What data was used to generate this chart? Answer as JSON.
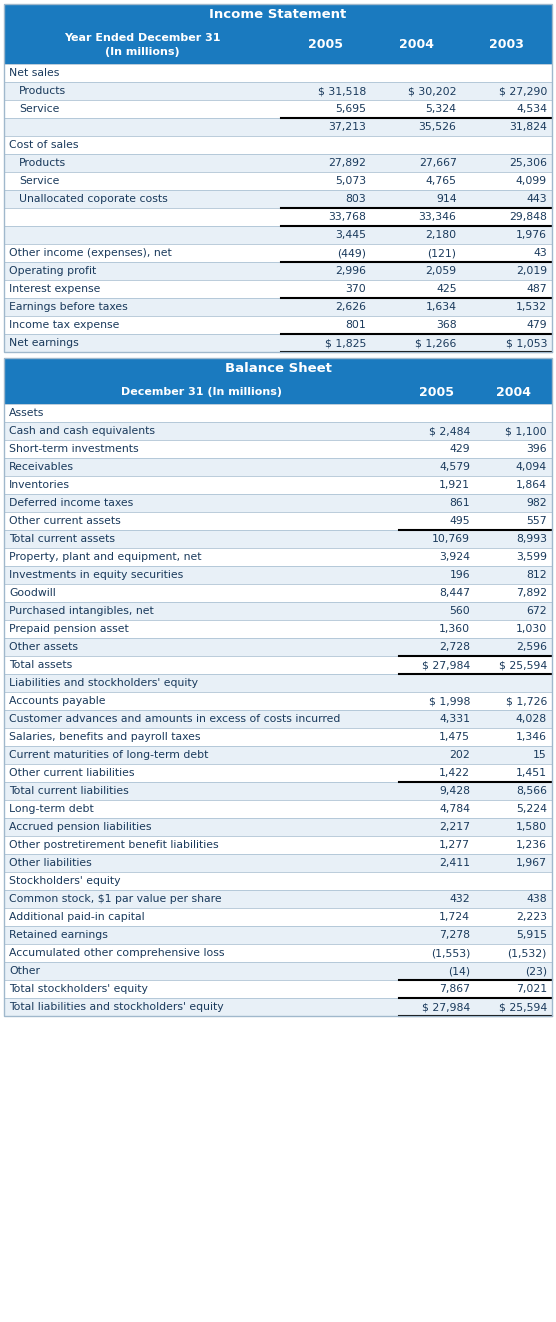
{
  "header_bg": "#1a7abf",
  "header_text_color": "#ffffff",
  "row_bg_alt": "#e8f0f7",
  "row_bg_white": "#ffffff",
  "text_color": "#1a3a5c",
  "border_color": "#a0b8cc",
  "fig_width": 5.56,
  "fig_height": 13.22,
  "dpi": 100,
  "income_title": "Income Statement",
  "income_sub1": "Year Ended December 31",
  "income_sub2": "(In millions)",
  "income_cols": [
    "2005",
    "2004",
    "2003"
  ],
  "income_rows": [
    {
      "label": "Net sales",
      "vals": [
        "",
        "",
        ""
      ],
      "indent": 0,
      "thick_bottom": false,
      "thick_top": false
    },
    {
      "label": "Products",
      "vals": [
        "$ 31,518",
        "$ 30,202",
        "$ 27,290"
      ],
      "indent": 1,
      "thick_bottom": false,
      "thick_top": false
    },
    {
      "label": "Service",
      "vals": [
        "5,695",
        "5,324",
        "4,534"
      ],
      "indent": 1,
      "thick_bottom": true,
      "thick_top": false
    },
    {
      "label": "",
      "vals": [
        "37,213",
        "35,526",
        "31,824"
      ],
      "indent": 0,
      "thick_bottom": false,
      "thick_top": false
    },
    {
      "label": "Cost of sales",
      "vals": [
        "",
        "",
        ""
      ],
      "indent": 0,
      "thick_bottom": false,
      "thick_top": false
    },
    {
      "label": "Products",
      "vals": [
        "27,892",
        "27,667",
        "25,306"
      ],
      "indent": 1,
      "thick_bottom": false,
      "thick_top": false
    },
    {
      "label": "Service",
      "vals": [
        "5,073",
        "4,765",
        "4,099"
      ],
      "indent": 1,
      "thick_bottom": false,
      "thick_top": false
    },
    {
      "label": "Unallocated coporate costs",
      "vals": [
        "803",
        "914",
        "443"
      ],
      "indent": 1,
      "thick_bottom": true,
      "thick_top": false
    },
    {
      "label": "",
      "vals": [
        "33,768",
        "33,346",
        "29,848"
      ],
      "indent": 0,
      "thick_bottom": true,
      "thick_top": false
    },
    {
      "label": "",
      "vals": [
        "3,445",
        "2,180",
        "1,976"
      ],
      "indent": 0,
      "thick_bottom": false,
      "thick_top": false
    },
    {
      "label": "Other income (expenses), net",
      "vals": [
        "(449)",
        "(121)",
        "43"
      ],
      "indent": 0,
      "thick_bottom": true,
      "thick_top": false
    },
    {
      "label": "Operating profit",
      "vals": [
        "2,996",
        "2,059",
        "2,019"
      ],
      "indent": 0,
      "thick_bottom": false,
      "thick_top": false
    },
    {
      "label": "Interest expense",
      "vals": [
        "370",
        "425",
        "487"
      ],
      "indent": 0,
      "thick_bottom": true,
      "thick_top": false
    },
    {
      "label": "Earnings before taxes",
      "vals": [
        "2,626",
        "1,634",
        "1,532"
      ],
      "indent": 0,
      "thick_bottom": false,
      "thick_top": false
    },
    {
      "label": "Income tax expense",
      "vals": [
        "801",
        "368",
        "479"
      ],
      "indent": 0,
      "thick_bottom": true,
      "thick_top": false
    },
    {
      "label": "Net earnings",
      "vals": [
        "$ 1,825",
        "$ 1,266",
        "$ 1,053"
      ],
      "indent": 0,
      "thick_bottom": true,
      "thick_top": false
    }
  ],
  "balance_title": "Balance Sheet",
  "balance_sub": "December 31 (In millions)",
  "balance_cols": [
    "2005",
    "2004"
  ],
  "balance_rows": [
    {
      "label": "Assets",
      "vals": [
        "",
        ""
      ],
      "thick_bottom": false,
      "thick_top": false
    },
    {
      "label": "Cash and cash equivalents",
      "vals": [
        "$ 2,484",
        "$ 1,100"
      ],
      "thick_bottom": false,
      "thick_top": false
    },
    {
      "label": "Short-term investments",
      "vals": [
        "429",
        "396"
      ],
      "thick_bottom": false,
      "thick_top": false
    },
    {
      "label": "Receivables",
      "vals": [
        "4,579",
        "4,094"
      ],
      "thick_bottom": false,
      "thick_top": false
    },
    {
      "label": "Inventories",
      "vals": [
        "1,921",
        "1,864"
      ],
      "thick_bottom": false,
      "thick_top": false
    },
    {
      "label": "Deferred income taxes",
      "vals": [
        "861",
        "982"
      ],
      "thick_bottom": false,
      "thick_top": false
    },
    {
      "label": "Other current assets",
      "vals": [
        "495",
        "557"
      ],
      "thick_bottom": true,
      "thick_top": false
    },
    {
      "label": "Total current assets",
      "vals": [
        "10,769",
        "8,993"
      ],
      "thick_bottom": false,
      "thick_top": false
    },
    {
      "label": "Property, plant and equipment, net",
      "vals": [
        "3,924",
        "3,599"
      ],
      "thick_bottom": false,
      "thick_top": false
    },
    {
      "label": "Investments in equity securities",
      "vals": [
        "196",
        "812"
      ],
      "thick_bottom": false,
      "thick_top": false
    },
    {
      "label": "Goodwill",
      "vals": [
        "8,447",
        "7,892"
      ],
      "thick_bottom": false,
      "thick_top": false
    },
    {
      "label": "Purchased intangibles, net",
      "vals": [
        "560",
        "672"
      ],
      "thick_bottom": false,
      "thick_top": false
    },
    {
      "label": "Prepaid pension asset",
      "vals": [
        "1,360",
        "1,030"
      ],
      "thick_bottom": false,
      "thick_top": false
    },
    {
      "label": "Other assets",
      "vals": [
        "2,728",
        "2,596"
      ],
      "thick_bottom": true,
      "thick_top": false
    },
    {
      "label": "Total assets",
      "vals": [
        "$ 27,984",
        "$ 25,594"
      ],
      "thick_bottom": true,
      "thick_top": false
    },
    {
      "label": "Liabilities and stockholders' equity",
      "vals": [
        "",
        ""
      ],
      "thick_bottom": false,
      "thick_top": false
    },
    {
      "label": "Accounts payable",
      "vals": [
        "$ 1,998",
        "$ 1,726"
      ],
      "thick_bottom": false,
      "thick_top": false
    },
    {
      "label": "Customer advances and amounts in excess of costs incurred",
      "vals": [
        "4,331",
        "4,028"
      ],
      "thick_bottom": false,
      "thick_top": false
    },
    {
      "label": "Salaries, benefits and payroll taxes",
      "vals": [
        "1,475",
        "1,346"
      ],
      "thick_bottom": false,
      "thick_top": false
    },
    {
      "label": "Current maturities of long-term debt",
      "vals": [
        "202",
        "15"
      ],
      "thick_bottom": false,
      "thick_top": false
    },
    {
      "label": "Other current liabilities",
      "vals": [
        "1,422",
        "1,451"
      ],
      "thick_bottom": true,
      "thick_top": false
    },
    {
      "label": "Total current liabilities",
      "vals": [
        "9,428",
        "8,566"
      ],
      "thick_bottom": false,
      "thick_top": false
    },
    {
      "label": "Long-term debt",
      "vals": [
        "4,784",
        "5,224"
      ],
      "thick_bottom": false,
      "thick_top": false
    },
    {
      "label": "Accrued pension liabilities",
      "vals": [
        "2,217",
        "1,580"
      ],
      "thick_bottom": false,
      "thick_top": false
    },
    {
      "label": "Other postretirement benefit liabilities",
      "vals": [
        "1,277",
        "1,236"
      ],
      "thick_bottom": false,
      "thick_top": false
    },
    {
      "label": "Other liabilities",
      "vals": [
        "2,411",
        "1,967"
      ],
      "thick_bottom": false,
      "thick_top": false
    },
    {
      "label": "Stockholders' equity",
      "vals": [
        "",
        ""
      ],
      "thick_bottom": false,
      "thick_top": false
    },
    {
      "label": "Common stock, $1 par value per share",
      "vals": [
        "432",
        "438"
      ],
      "thick_bottom": false,
      "thick_top": false
    },
    {
      "label": "Additional paid-in capital",
      "vals": [
        "1,724",
        "2,223"
      ],
      "thick_bottom": false,
      "thick_top": false
    },
    {
      "label": "Retained earnings",
      "vals": [
        "7,278",
        "5,915"
      ],
      "thick_bottom": false,
      "thick_top": false
    },
    {
      "label": "Accumulated other comprehensive loss",
      "vals": [
        "(1,553)",
        "(1,532)"
      ],
      "thick_bottom": false,
      "thick_top": false
    },
    {
      "label": "Other",
      "vals": [
        "(14)",
        "(23)"
      ],
      "thick_bottom": true,
      "thick_top": false
    },
    {
      "label": "Total stockholders' equity",
      "vals": [
        "7,867",
        "7,021"
      ],
      "thick_bottom": true,
      "thick_top": false
    },
    {
      "label": "Total liabilities and stockholders' equity",
      "vals": [
        "$ 27,984",
        "$ 25,594"
      ],
      "thick_bottom": true,
      "thick_top": false
    }
  ]
}
